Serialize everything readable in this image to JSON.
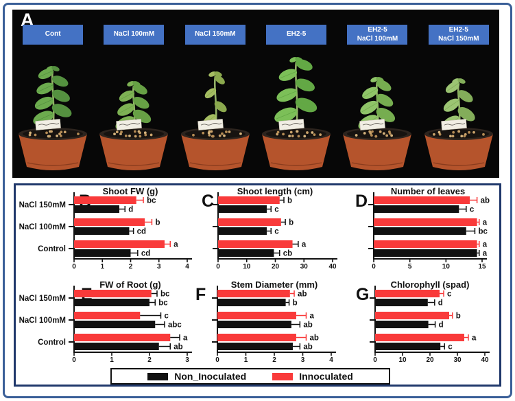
{
  "panel_a": {
    "label": "A",
    "treatment_label_color": "#4472c4",
    "treatments": [
      {
        "lines": [
          "Cont"
        ]
      },
      {
        "lines": [
          "NaCl 100mM"
        ]
      },
      {
        "lines": [
          "NaCl 150mM"
        ]
      },
      {
        "lines": [
          "EH2-5"
        ]
      },
      {
        "lines": [
          "EH2-5",
          "NaCl 100mM"
        ]
      },
      {
        "lines": [
          "EH2-5",
          "NaCl 150mM"
        ]
      }
    ]
  },
  "legend": {
    "items": [
      {
        "label": "Non_Inoculated",
        "color": "#111111"
      },
      {
        "label": "Innoculated",
        "color": "#f93a3a"
      }
    ]
  },
  "chart_data": [
    {
      "panel": "B",
      "type": "bar",
      "orientation": "horizontal",
      "title": "Shoot FW (g)",
      "categories": [
        "NaCl 150mM",
        "NaCl 100mM",
        "Control"
      ],
      "category_labels_visible": true,
      "xlim": [
        0,
        4
      ],
      "xticks": [
        0,
        1,
        2,
        3,
        4
      ],
      "series": [
        {
          "name": "Innoculated",
          "color": "#f93a3a",
          "whisker_color": "#f93a3a",
          "values": [
            2.2,
            2.5,
            3.2
          ],
          "errors": [
            0.25,
            0.25,
            0.2
          ],
          "sig_letters": [
            "bc",
            "b",
            "a"
          ]
        },
        {
          "name": "Non_Inoculated",
          "color": "#111111",
          "whisker_color": "#111111",
          "values": [
            1.6,
            1.95,
            2.0
          ],
          "errors": [
            0.2,
            0.15,
            0.25
          ],
          "sig_letters": [
            "d",
            "cd",
            "cd"
          ]
        }
      ]
    },
    {
      "panel": "C",
      "type": "bar",
      "orientation": "horizontal",
      "title": "Shoot length (cm)",
      "categories": [
        "NaCl 150mM",
        "NaCl 100mM",
        "Control"
      ],
      "category_labels_visible": false,
      "xlim": [
        0,
        40
      ],
      "xticks": [
        0,
        10,
        20,
        30,
        40
      ],
      "series": [
        {
          "name": "Innoculated",
          "color": "#f93a3a",
          "whisker_color": "#111111",
          "values": [
            21.5,
            22,
            26
          ],
          "errors": [
            1.5,
            1.5,
            2
          ],
          "sig_letters": [
            "b",
            "b",
            "a"
          ]
        },
        {
          "name": "Non_Inoculated",
          "color": "#111111",
          "whisker_color": "#111111",
          "values": [
            17,
            17,
            19.5
          ],
          "errors": [
            1.5,
            1.5,
            2
          ],
          "sig_letters": [
            "c",
            "c",
            "cb"
          ]
        }
      ]
    },
    {
      "panel": "D",
      "type": "bar",
      "orientation": "horizontal",
      "title": "Number of leaves",
      "categories": [
        "NaCl 150mM",
        "NaCl 100mM",
        "Control"
      ],
      "category_labels_visible": false,
      "xlim": [
        0,
        15
      ],
      "xticks": [
        0,
        5,
        10,
        15
      ],
      "series": [
        {
          "name": "Innoculated",
          "color": "#f93a3a",
          "whisker_color": "#f93a3a",
          "values": [
            13.3,
            14.3,
            14.3
          ],
          "errors": [
            1.0,
            0.3,
            0.3
          ],
          "sig_letters": [
            "ab",
            "a",
            "a"
          ]
        },
        {
          "name": "Non_Inoculated",
          "color": "#111111",
          "whisker_color": "#111111",
          "values": [
            11.8,
            12.8,
            14.3
          ],
          "errors": [
            1.0,
            1.2,
            0.3
          ],
          "sig_letters": [
            "c",
            "bc",
            "a"
          ]
        }
      ]
    },
    {
      "panel": "E",
      "type": "bar",
      "orientation": "horizontal",
      "title": "FW of Root (g)",
      "categories": [
        "NaCl 150mM",
        "NaCl 100mM",
        "Control"
      ],
      "category_labels_visible": true,
      "xlim": [
        0,
        3
      ],
      "xticks": [
        0,
        1,
        2,
        3
      ],
      "series": [
        {
          "name": "Innoculated",
          "color": "#f93a3a",
          "whisker_color": "#111111",
          "values": [
            2.05,
            1.75,
            2.55
          ],
          "errors": [
            0.15,
            0.55,
            0.25
          ],
          "sig_letters": [
            "bc",
            "c",
            "a"
          ]
        },
        {
          "name": "Non_Inoculated",
          "color": "#111111",
          "whisker_color": "#111111",
          "values": [
            2.0,
            2.15,
            2.25
          ],
          "errors": [
            0.15,
            0.25,
            0.3
          ],
          "sig_letters": [
            "bc",
            "abc",
            "ab"
          ]
        }
      ]
    },
    {
      "panel": "F",
      "type": "bar",
      "orientation": "horizontal",
      "title": "Stem Diameter (mm)",
      "categories": [
        "NaCl 150mM",
        "NaCl 100mM",
        "Control"
      ],
      "category_labels_visible": false,
      "xlim": [
        0,
        4
      ],
      "xticks": [
        0,
        1,
        2,
        3,
        4
      ],
      "series": [
        {
          "name": "Innoculated",
          "color": "#f93a3a",
          "whisker_color": "#f93a3a",
          "values": [
            2.55,
            2.77,
            2.77
          ],
          "errors": [
            0.15,
            0.35,
            0.35
          ],
          "sig_letters": [
            "ab",
            "a",
            "ab"
          ]
        },
        {
          "name": "Non_Inoculated",
          "color": "#111111",
          "whisker_color": "#111111",
          "values": [
            2.4,
            2.6,
            2.65
          ],
          "errors": [
            0.12,
            0.3,
            0.25
          ],
          "sig_letters": [
            "b",
            "ab",
            "ab"
          ]
        }
      ]
    },
    {
      "panel": "G",
      "type": "bar",
      "orientation": "horizontal",
      "title": "Chlorophyll (spad)",
      "categories": [
        "NaCl 150mM",
        "NaCl 100mM",
        "Control"
      ],
      "category_labels_visible": false,
      "xlim": [
        0,
        40
      ],
      "xticks": [
        0,
        10,
        20,
        30,
        40
      ],
      "series": [
        {
          "name": "Innoculated",
          "color": "#f93a3a",
          "whisker_color": "#f93a3a",
          "values": [
            23.5,
            27,
            32.5
          ],
          "errors": [
            1.5,
            1.2,
            1.5
          ],
          "sig_letters": [
            "c",
            "b",
            "a"
          ]
        },
        {
          "name": "Non_Inoculated",
          "color": "#111111",
          "whisker_color": "#111111",
          "values": [
            19.2,
            19.4,
            23.8
          ],
          "errors": [
            2.5,
            2.5,
            1.5
          ],
          "sig_letters": [
            "d",
            "d",
            "c"
          ]
        }
      ]
    }
  ]
}
